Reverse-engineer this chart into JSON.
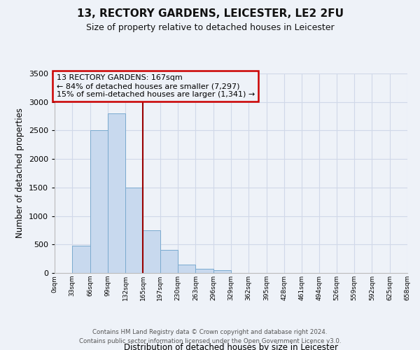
{
  "title": "13, RECTORY GARDENS, LEICESTER, LE2 2FU",
  "subtitle": "Size of property relative to detached houses in Leicester",
  "xlabel": "Distribution of detached houses by size in Leicester",
  "ylabel": "Number of detached properties",
  "bin_edges": [
    0,
    33,
    66,
    99,
    132,
    165,
    197,
    230,
    263,
    296,
    329,
    362,
    395,
    428,
    461,
    494,
    526,
    559,
    592,
    625,
    658
  ],
  "bin_labels": [
    "0sqm",
    "33sqm",
    "66sqm",
    "99sqm",
    "132sqm",
    "165sqm",
    "197sqm",
    "230sqm",
    "263sqm",
    "296sqm",
    "329sqm",
    "362sqm",
    "395sqm",
    "428sqm",
    "461sqm",
    "494sqm",
    "526sqm",
    "559sqm",
    "592sqm",
    "625sqm",
    "658sqm"
  ],
  "counts": [
    5,
    475,
    2500,
    2800,
    1500,
    750,
    400,
    150,
    75,
    50,
    0,
    0,
    0,
    0,
    0,
    0,
    0,
    0,
    0,
    0
  ],
  "bar_facecolor": "#c8d9ee",
  "bar_edgecolor": "#7aaacf",
  "vline_x": 165,
  "vline_color": "#990000",
  "annotation_title": "13 RECTORY GARDENS: 167sqm",
  "annotation_line1": "← 84% of detached houses are smaller (7,297)",
  "annotation_line2": "15% of semi-detached houses are larger (1,341) →",
  "annotation_box_edgecolor": "#cc0000",
  "ylim": [
    0,
    3500
  ],
  "yticks": [
    0,
    500,
    1000,
    1500,
    2000,
    2500,
    3000,
    3500
  ],
  "grid_color": "#d0d8e8",
  "background_color": "#eef2f8",
  "footer_line1": "Contains HM Land Registry data © Crown copyright and database right 2024.",
  "footer_line2": "Contains public sector information licensed under the Open Government Licence v3.0."
}
